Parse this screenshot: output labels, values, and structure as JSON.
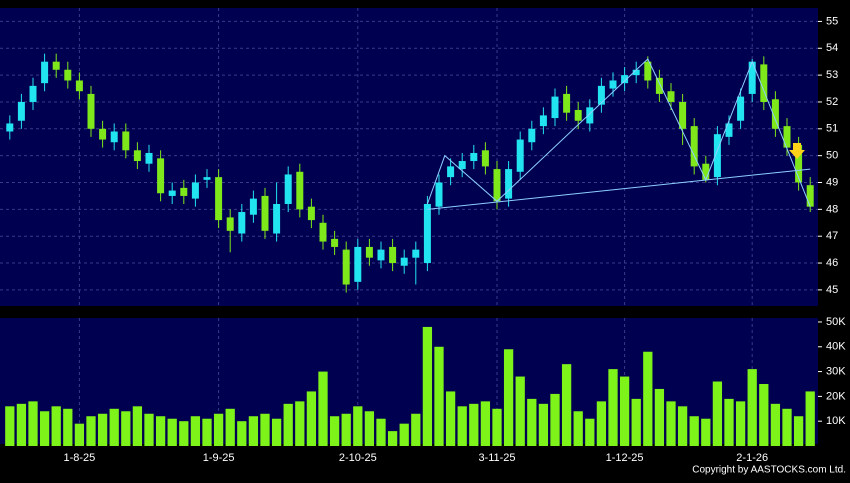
{
  "chart_data": {
    "type": "candlestick",
    "categories": [
      null,
      null,
      null,
      null,
      null,
      null,
      "1-8-25",
      null,
      null,
      null,
      null,
      null,
      null,
      null,
      null,
      null,
      null,
      null,
      "1-9-25",
      null,
      null,
      null,
      null,
      null,
      null,
      null,
      null,
      null,
      null,
      null,
      "2-10-25",
      null,
      null,
      null,
      null,
      null,
      null,
      null,
      null,
      null,
      null,
      null,
      "3-11-25",
      null,
      null,
      null,
      null,
      null,
      null,
      null,
      null,
      null,
      null,
      "1-12-25",
      null,
      null,
      null,
      null,
      null,
      null,
      null,
      null,
      null,
      null,
      "2-1-26",
      null,
      null,
      null,
      null,
      null
    ],
    "open": [
      50.9,
      51.3,
      52.0,
      52.7,
      53.5,
      53.2,
      52.8,
      52.3,
      51.0,
      50.5,
      50.9,
      50.2,
      49.7,
      49.9,
      48.5,
      48.8,
      48.4,
      49.1,
      49.2,
      47.7,
      47.1,
      47.8,
      48.5,
      47.1,
      48.2,
      49.4,
      48.1,
      47.5,
      46.9,
      46.5,
      45.3,
      46.6,
      46.1,
      46.6,
      45.9,
      46.2,
      46.0,
      48.1,
      49.2,
      49.5,
      49.8,
      50.2,
      49.5,
      48.4,
      49.4,
      50.5,
      51.1,
      51.4,
      52.3,
      51.7,
      51.2,
      51.9,
      52.5,
      52.7,
      53.0,
      53.5,
      52.9,
      52.4,
      52.0,
      51.1,
      49.7,
      49.2,
      50.7,
      51.3,
      52.3,
      53.4,
      52.1,
      51.1,
      50.4,
      48.9
    ],
    "high": [
      51.5,
      52.3,
      52.9,
      53.8,
      53.8,
      53.5,
      53.1,
      52.6,
      51.3,
      51.2,
      51.2,
      50.5,
      50.4,
      50.2,
      49.0,
      49.1,
      49.3,
      49.5,
      49.5,
      48.0,
      48.2,
      48.7,
      48.8,
      49.0,
      49.6,
      49.7,
      48.4,
      47.8,
      47.2,
      46.8,
      46.9,
      46.9,
      46.8,
      46.9,
      46.5,
      46.8,
      48.5,
      49.3,
      49.9,
      50.1,
      50.4,
      50.5,
      49.8,
      49.8,
      50.9,
      51.3,
      51.8,
      52.5,
      52.6,
      52.0,
      52.1,
      52.9,
      53.1,
      53.3,
      53.5,
      53.7,
      53.2,
      52.7,
      52.3,
      51.4,
      50.0,
      51.1,
      51.5,
      52.5,
      53.6,
      53.7,
      52.4,
      51.4,
      50.7,
      49.2
    ],
    "low": [
      50.6,
      51.0,
      51.7,
      52.4,
      52.9,
      52.5,
      52.1,
      50.7,
      50.3,
      50.2,
      49.9,
      49.5,
      49.4,
      48.3,
      48.2,
      48.2,
      48.1,
      48.8,
      47.3,
      46.4,
      46.8,
      47.5,
      46.9,
      46.8,
      47.9,
      47.7,
      47.3,
      46.5,
      46.3,
      44.9,
      45.0,
      45.9,
      45.8,
      45.7,
      45.6,
      45.2,
      45.7,
      47.8,
      48.9,
      49.2,
      49.5,
      49.3,
      48.0,
      48.1,
      49.1,
      50.2,
      50.8,
      51.1,
      51.3,
      51.0,
      50.9,
      51.6,
      52.2,
      52.4,
      52.7,
      52.5,
      52.0,
      51.7,
      50.4,
      49.3,
      49.0,
      48.9,
      50.4,
      51.0,
      52.0,
      51.7,
      50.7,
      50.0,
      48.7,
      47.9
    ],
    "close": [
      51.2,
      52.0,
      52.6,
      53.5,
      53.2,
      52.8,
      52.4,
      51.0,
      50.6,
      50.9,
      50.2,
      49.8,
      50.1,
      48.6,
      48.7,
      48.5,
      49.0,
      49.2,
      47.6,
      47.2,
      47.9,
      48.4,
      47.2,
      48.2,
      49.3,
      48.0,
      47.6,
      46.8,
      46.6,
      45.2,
      46.6,
      46.2,
      46.5,
      46.0,
      46.2,
      46.5,
      48.2,
      49.0,
      49.6,
      49.8,
      50.1,
      49.6,
      48.3,
      49.5,
      50.6,
      51.0,
      51.5,
      52.2,
      51.6,
      51.3,
      51.8,
      52.6,
      52.8,
      53.0,
      53.2,
      52.8,
      52.3,
      52.0,
      51.0,
      49.6,
      49.1,
      50.8,
      51.2,
      52.2,
      53.5,
      52.0,
      51.0,
      50.3,
      49.0,
      48.1
    ],
    "volume": [
      16000,
      17000,
      18000,
      14000,
      16000,
      15000,
      9000,
      12000,
      13000,
      15000,
      14000,
      16000,
      13000,
      12000,
      11000,
      10000,
      12000,
      11000,
      13000,
      15000,
      10000,
      12000,
      13000,
      11000,
      17000,
      18000,
      22000,
      30000,
      12000,
      13000,
      16000,
      14000,
      11000,
      6000,
      9000,
      13000,
      48000,
      40000,
      22000,
      16000,
      17000,
      18000,
      15000,
      39000,
      28000,
      19000,
      17000,
      21000,
      33000,
      14000,
      11000,
      18000,
      31000,
      28000,
      19000,
      38000,
      23000,
      18000,
      16000,
      12000,
      11000,
      26000,
      19000,
      18000,
      31000,
      25000,
      17000,
      15000,
      12000,
      22000
    ],
    "up_color": "#22e4f0",
    "down_color": "#7ee81a",
    "volume_color": "#7ef31a",
    "line_color": "#8ecfff",
    "ylim": [
      44.4,
      55.5
    ],
    "yticks": [
      45,
      46,
      47,
      48,
      49,
      50,
      51,
      52,
      53,
      54,
      55
    ],
    "volume_ylim": [
      0,
      51600
    ],
    "volume_ticks": [
      {
        "value": 10000,
        "label": "10K"
      },
      {
        "value": 20000,
        "label": "20K"
      },
      {
        "value": 30000,
        "label": "30K"
      },
      {
        "value": 40000,
        "label": "40K"
      },
      {
        "value": 50000,
        "label": "50K"
      }
    ],
    "trendlines": [
      {
        "x": [
          36,
          69
        ],
        "y": [
          48.0,
          49.5
        ]
      },
      {
        "x": [
          36,
          37.5,
          42,
          55,
          60,
          64,
          69
        ],
        "y": [
          48.2,
          50.0,
          48.3,
          53.6,
          49.1,
          53.5,
          48.1
        ]
      }
    ],
    "grid": true,
    "copyright": "Copyright by AASTOCKS.com Ltd."
  }
}
